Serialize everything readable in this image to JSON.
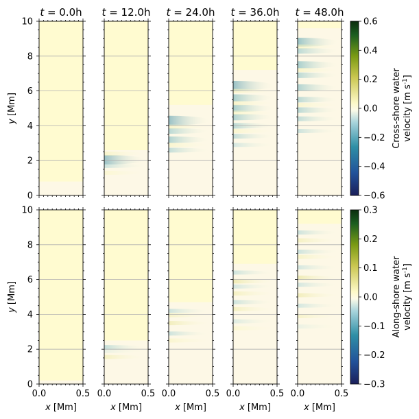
{
  "chart_data": {
    "type": "heatmap",
    "layout": "2 rows x 5 columns of small-multiple panels with one colorbar per row",
    "columns": [
      "t = 0.0h",
      "t = 12.0h",
      "t = 24.0h",
      "t = 36.0h",
      "t = 48.0h"
    ],
    "title_prefix": "t",
    "title_values": [
      "= 0.0h",
      "= 12.0h",
      "= 24.0h",
      "= 36.0h",
      "= 48.0h"
    ],
    "xlabel": "x [Mm]",
    "ylabel": "y [Mm]",
    "xlim": [
      0.0,
      0.5
    ],
    "ylim": [
      0,
      10
    ],
    "x_ticks": [
      "0.0",
      "0.5"
    ],
    "y_ticks": [
      "0",
      "2",
      "4",
      "6",
      "8",
      "10"
    ],
    "grid": "horizontal lines at y ticks",
    "colormap": "blue-teal-white-yellow-green diverging (ocean-style)",
    "colormap_stops": [
      "#1b1f5a",
      "#21529a",
      "#2f8fa6",
      "#a9d4dc",
      "#fdfbe8",
      "#fdf9c8",
      "#c9c64f",
      "#7a9a14",
      "#1b5e20",
      "#0b2e0e"
    ],
    "rows": [
      {
        "name": "Cross-shore water velocity",
        "colorbar_label_line1": "Cross-shore water",
        "colorbar_label_line2": "velocity [m s",
        "colorbar_label_unit_sup": "-1",
        "colorbar_label_close": "]",
        "vmin": -0.6,
        "vmax": 0.6,
        "ticks": [
          "0.6",
          "0.4",
          "0.2",
          "0.0",
          "−0.2",
          "−0.4",
          "−0.6"
        ],
        "tick_values": [
          0.6,
          0.4,
          0.2,
          0.0,
          -0.2,
          -0.4,
          -0.6
        ],
        "panels": [
          {
            "time_h": 0,
            "background": 0.02,
            "front_y_Mm": 0.8,
            "bands": []
          },
          {
            "time_h": 12,
            "background": 0.0,
            "front_y_Mm": 2.6,
            "bands": [
              {
                "y": 2.05,
                "value": -0.6
              },
              {
                "y": 1.7,
                "value": -0.25
              },
              {
                "y": 2.4,
                "value": 0.15
              },
              {
                "y": 1.3,
                "value": 0.1
              }
            ]
          },
          {
            "time_h": 24,
            "background": 0.0,
            "front_y_Mm": 5.2,
            "bands": [
              {
                "y": 4.3,
                "value": -0.6
              },
              {
                "y": 3.7,
                "value": -0.35
              },
              {
                "y": 3.2,
                "value": -0.4
              },
              {
                "y": 2.6,
                "value": -0.3
              },
              {
                "y": 3.95,
                "value": 0.15
              },
              {
                "y": 2.9,
                "value": 0.12
              }
            ]
          },
          {
            "time_h": 36,
            "background": 0.0,
            "front_y_Mm": 7.2,
            "bands": [
              {
                "y": 6.3,
                "value": -0.6
              },
              {
                "y": 5.6,
                "value": -0.45
              },
              {
                "y": 5.0,
                "value": -0.45
              },
              {
                "y": 4.5,
                "value": -0.4
              },
              {
                "y": 4.0,
                "value": -0.35
              },
              {
                "y": 3.4,
                "value": -0.3
              },
              {
                "y": 2.9,
                "value": -0.2
              },
              {
                "y": 6.0,
                "value": 0.15
              },
              {
                "y": 5.3,
                "value": 0.15
              },
              {
                "y": 4.75,
                "value": 0.12
              },
              {
                "y": 3.7,
                "value": 0.12
              }
            ]
          },
          {
            "time_h": 48,
            "background": 0.0,
            "front_y_Mm": 9.6,
            "bands": [
              {
                "y": 8.8,
                "value": -0.55
              },
              {
                "y": 8.3,
                "value": -0.35
              },
              {
                "y": 7.5,
                "value": -0.45
              },
              {
                "y": 6.9,
                "value": -0.35
              },
              {
                "y": 6.2,
                "value": -0.4
              },
              {
                "y": 5.5,
                "value": -0.35
              },
              {
                "y": 4.9,
                "value": -0.35
              },
              {
                "y": 4.4,
                "value": -0.3
              },
              {
                "y": 3.7,
                "value": -0.25
              },
              {
                "y": 8.55,
                "value": 0.15
              },
              {
                "y": 7.2,
                "value": 0.15
              },
              {
                "y": 5.2,
                "value": 0.12
              }
            ]
          }
        ]
      },
      {
        "name": "Along-shore water velocity",
        "colorbar_label_line1": "Along-shore water",
        "colorbar_label_line2": "velocity [m s",
        "colorbar_label_unit_sup": "-1",
        "colorbar_label_close": "]",
        "vmin": -0.3,
        "vmax": 0.3,
        "ticks": [
          "0.3",
          "0.2",
          "0.1",
          "0.0",
          "−0.1",
          "−0.2",
          "−0.3"
        ],
        "tick_values": [
          0.3,
          0.2,
          0.1,
          0.0,
          -0.1,
          -0.2,
          -0.3
        ],
        "panels": [
          {
            "time_h": 0,
            "background": 0.02,
            "front_y_Mm": 0.2,
            "bands": []
          },
          {
            "time_h": 12,
            "background": 0.0,
            "front_y_Mm": 2.5,
            "bands": [
              {
                "y": 2.1,
                "value": -0.15
              },
              {
                "y": 1.55,
                "value": 0.1
              },
              {
                "y": 1.9,
                "value": -0.05
              }
            ]
          },
          {
            "time_h": 24,
            "background": 0.0,
            "front_y_Mm": 4.7,
            "bands": [
              {
                "y": 4.2,
                "value": -0.12
              },
              {
                "y": 3.95,
                "value": 0.08
              },
              {
                "y": 3.5,
                "value": 0.12
              },
              {
                "y": 2.9,
                "value": -0.12
              },
              {
                "y": 2.5,
                "value": 0.06
              }
            ]
          },
          {
            "time_h": 36,
            "background": 0.0,
            "front_y_Mm": 6.9,
            "bands": [
              {
                "y": 6.4,
                "value": -0.12
              },
              {
                "y": 5.9,
                "value": 0.14
              },
              {
                "y": 5.6,
                "value": -0.1
              },
              {
                "y": 5.2,
                "value": 0.1
              },
              {
                "y": 4.7,
                "value": -0.12
              },
              {
                "y": 4.3,
                "value": 0.1
              },
              {
                "y": 3.6,
                "value": -0.08
              },
              {
                "y": 3.2,
                "value": 0.05
              }
            ]
          },
          {
            "time_h": 48,
            "background": 0.0,
            "front_y_Mm": 9.2,
            "bands": [
              {
                "y": 8.7,
                "value": -0.12
              },
              {
                "y": 8.25,
                "value": 0.1
              },
              {
                "y": 7.6,
                "value": -0.12
              },
              {
                "y": 7.3,
                "value": 0.08
              },
              {
                "y": 6.7,
                "value": -0.1
              },
              {
                "y": 6.1,
                "value": 0.14
              },
              {
                "y": 5.7,
                "value": -0.1
              },
              {
                "y": 5.1,
                "value": 0.12
              },
              {
                "y": 4.5,
                "value": -0.1
              },
              {
                "y": 3.9,
                "value": 0.08
              },
              {
                "y": 3.3,
                "value": -0.05
              }
            ]
          }
        ]
      }
    ]
  }
}
